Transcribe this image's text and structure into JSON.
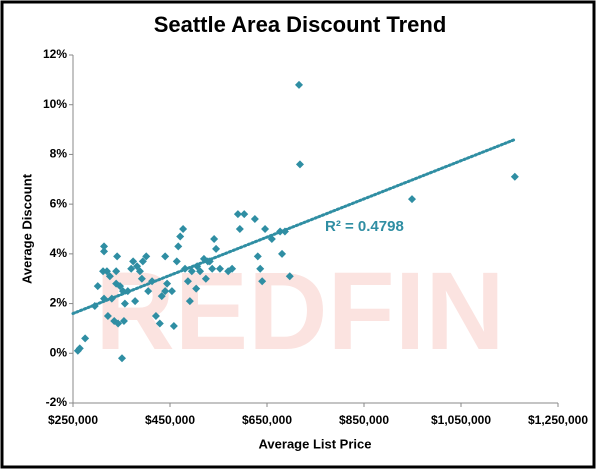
{
  "chart_data": {
    "type": "scatter",
    "title": "Seattle Area Discount Trend",
    "xlabel": "Average List Price",
    "ylabel": "Average Discount",
    "watermark": "REDFIN",
    "annotation": "R² = 0.4798",
    "color": "#2f8ea3",
    "xlim": [
      250000,
      1250000
    ],
    "ylim": [
      -2,
      12
    ],
    "xticks": [
      {
        "value": 250000,
        "label": "$250,000"
      },
      {
        "value": 450000,
        "label": "$450,000"
      },
      {
        "value": 650000,
        "label": "$650,000"
      },
      {
        "value": 850000,
        "label": "$850,000"
      },
      {
        "value": 1050000,
        "label": "$1,050,000"
      },
      {
        "value": 1250000,
        "label": "$1,250,000"
      }
    ],
    "yticks": [
      {
        "value": -2,
        "label": "-2%"
      },
      {
        "value": 0,
        "label": "0%"
      },
      {
        "value": 2,
        "label": "2%"
      },
      {
        "value": 4,
        "label": "4%"
      },
      {
        "value": 6,
        "label": "6%"
      },
      {
        "value": 8,
        "label": "8%"
      },
      {
        "value": 10,
        "label": "10%"
      },
      {
        "value": 12,
        "label": "12%"
      }
    ],
    "trendline": {
      "x": [
        250000,
        1161000
      ],
      "y": [
        1.6,
        8.6
      ]
    },
    "x": [
      260000,
      264000,
      275000,
      295000,
      301000,
      312000,
      314000,
      314000,
      314000,
      320000,
      322000,
      326000,
      330000,
      335000,
      339000,
      339000,
      341000,
      343000,
      347000,
      351000,
      353000,
      355000,
      357000,
      363000,
      370000,
      374000,
      378000,
      382000,
      388000,
      392000,
      394000,
      401000,
      405000,
      413000,
      421000,
      429000,
      433000,
      440000,
      440000,
      444000,
      454000,
      458000,
      464000,
      467000,
      471000,
      477000,
      481000,
      487000,
      491000,
      495000,
      504000,
      506000,
      512000,
      520000,
      524000,
      528000,
      532000,
      537000,
      541000,
      545000,
      553000,
      570000,
      578000,
      590000,
      594000,
      603000,
      625000,
      631000,
      636000,
      640000,
      646000,
      660000,
      677000,
      681000,
      687000,
      697000,
      716000,
      718000,
      949000,
      1161000
    ],
    "values": [
      0.1,
      0.2,
      0.6,
      1.9,
      2.7,
      3.3,
      4.3,
      4.1,
      2.2,
      3.3,
      1.5,
      3.1,
      2.2,
      1.3,
      2.8,
      3.3,
      3.9,
      1.2,
      2.7,
      -0.2,
      2.5,
      1.3,
      2.0,
      2.5,
      3.4,
      3.7,
      2.1,
      3.5,
      3.3,
      3.0,
      3.7,
      3.9,
      2.5,
      2.9,
      1.5,
      1.2,
      2.3,
      2.5,
      3.9,
      2.8,
      2.5,
      1.1,
      3.7,
      4.3,
      4.7,
      5.0,
      3.4,
      2.9,
      2.1,
      3.3,
      2.6,
      3.5,
      3.3,
      3.8,
      3.0,
      3.7,
      3.7,
      3.4,
      4.6,
      4.2,
      3.4,
      3.3,
      3.4,
      5.6,
      5.0,
      5.6,
      5.4,
      3.9,
      3.4,
      2.9,
      5.0,
      4.6,
      4.9,
      4.0,
      4.9,
      3.1,
      10.8,
      7.6,
      6.2,
      7.1
    ]
  }
}
